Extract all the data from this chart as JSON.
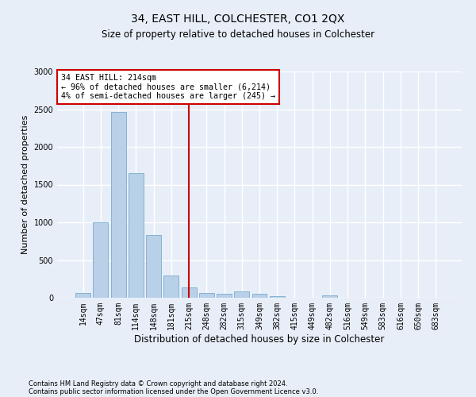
{
  "title": "34, EAST HILL, COLCHESTER, CO1 2QX",
  "subtitle": "Size of property relative to detached houses in Colchester",
  "xlabel": "Distribution of detached houses by size in Colchester",
  "ylabel": "Number of detached properties",
  "bins": [
    "14sqm",
    "47sqm",
    "81sqm",
    "114sqm",
    "148sqm",
    "181sqm",
    "215sqm",
    "248sqm",
    "282sqm",
    "315sqm",
    "349sqm",
    "382sqm",
    "415sqm",
    "449sqm",
    "482sqm",
    "516sqm",
    "549sqm",
    "583sqm",
    "616sqm",
    "650sqm",
    "683sqm"
  ],
  "values": [
    60,
    1000,
    2460,
    1650,
    830,
    300,
    140,
    60,
    55,
    80,
    55,
    20,
    0,
    0,
    35,
    0,
    0,
    0,
    0,
    0,
    0
  ],
  "bar_color": "#b8d0e8",
  "bar_edge_color": "#7aabcc",
  "vline_x": 6.0,
  "annotation_title": "34 EAST HILL: 214sqm",
  "annotation_line1": "← 96% of detached houses are smaller (6,214)",
  "annotation_line2": "4% of semi-detached houses are larger (245) →",
  "annotation_box_color": "#ffffff",
  "annotation_box_edge": "#cc0000",
  "vline_color": "#cc0000",
  "footer1": "Contains HM Land Registry data © Crown copyright and database right 2024.",
  "footer2": "Contains public sector information licensed under the Open Government Licence v3.0.",
  "ylim": [
    0,
    3000
  ],
  "yticks": [
    0,
    500,
    1000,
    1500,
    2000,
    2500,
    3000
  ],
  "background_color": "#e8eef8",
  "grid_color": "#ffffff",
  "title_fontsize": 10,
  "subtitle_fontsize": 8.5,
  "ylabel_fontsize": 8,
  "xlabel_fontsize": 8.5,
  "tick_fontsize": 7,
  "annotation_fontsize": 7.2,
  "footer_fontsize": 6
}
